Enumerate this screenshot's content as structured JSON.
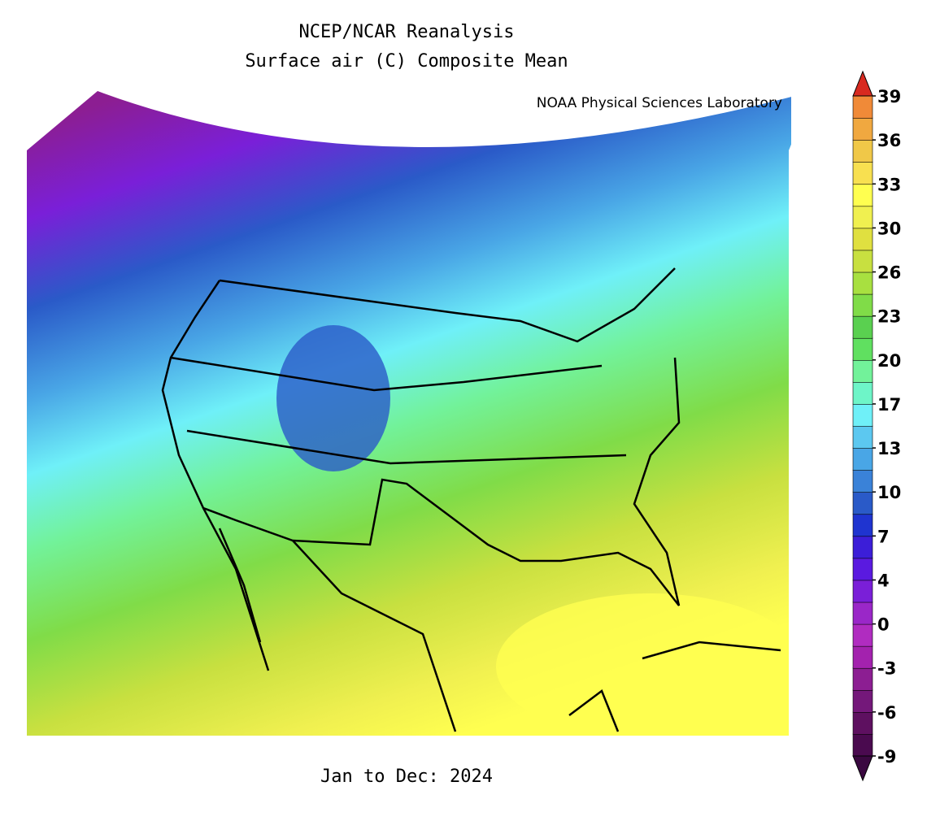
{
  "header": {
    "title_lines": [
      "NCEP/NCAR Reanalysis",
      "Surface air (C) Composite Mean"
    ],
    "credit": "NOAA Physical Sciences Laboratory"
  },
  "caption": "Jan to Dec: 2024",
  "colorbar": {
    "ticks": [
      -9,
      -6,
      -3,
      0,
      4,
      7,
      10,
      13,
      17,
      20,
      23,
      26,
      30,
      33,
      36,
      39
    ],
    "colors": [
      "#4a0a4f",
      "#5e1060",
      "#74187a",
      "#8c1e92",
      "#a322ae",
      "#b02cc0",
      "#9a27c8",
      "#7a1fd8",
      "#5a1ae0",
      "#3c1ed8",
      "#1f34d0",
      "#2a5ac8",
      "#3a82d8",
      "#49a6e6",
      "#5cc8f0",
      "#6ff0f8",
      "#6ef5c8",
      "#72f29a",
      "#60e060",
      "#5ad050",
      "#80dc48",
      "#a8e040",
      "#c8e040",
      "#e0e040",
      "#f0f050",
      "#ffff50",
      "#f8e050",
      "#f0c848",
      "#f0a840",
      "#f08a38"
    ],
    "under_color": "#3a0840",
    "over_color": "#d82a20"
  }
}
